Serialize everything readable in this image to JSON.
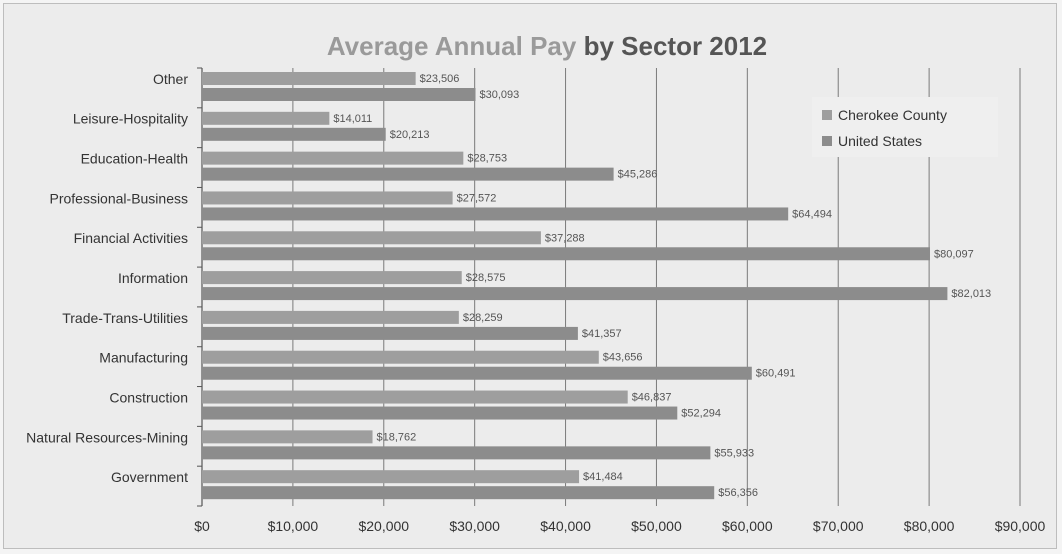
{
  "chart_data": {
    "type": "bar",
    "orientation": "horizontal",
    "title_part1": "Average Annual Pay ",
    "title_part2": "by Sector 2012",
    "categories": [
      "Other",
      "Leisure-Hospitality",
      "Education-Health",
      "Professional-Business",
      "Financial Activities",
      "Information",
      "Trade-Trans-Utilities",
      "Manufacturing",
      "Construction",
      "Natural Resources-Mining",
      "Government"
    ],
    "series": [
      {
        "name": "Cherokee County",
        "color": "#9e9e9e",
        "values": [
          23506,
          14011,
          28753,
          27572,
          37288,
          28575,
          28259,
          43656,
          46837,
          18762,
          41484
        ],
        "labels": [
          "$23,506",
          "$14,011",
          "$28,753",
          "$27,572",
          "$37,288",
          "$28,575",
          "$28,259",
          "$43,656",
          "$46,837",
          "$18,762",
          "$41,484"
        ]
      },
      {
        "name": "United States",
        "color": "#8c8c8c",
        "values": [
          30093,
          20213,
          45286,
          64494,
          80097,
          82013,
          41357,
          60491,
          52294,
          55933,
          56356
        ],
        "labels": [
          "$30,093",
          "$20,213",
          "$45,286",
          "$64,494",
          "$80,097",
          "$82,013",
          "$41,357",
          "$60,491",
          "$52,294",
          "$55,933",
          "$56,356"
        ]
      }
    ],
    "xlim": [
      0,
      90000
    ],
    "xticks": [
      "$0",
      "$10,000",
      "$20,000",
      "$30,000",
      "$40,000",
      "$50,000",
      "$60,000",
      "$70,000",
      "$80,000",
      "$90,000"
    ],
    "grid": true,
    "legend": "top-right"
  }
}
